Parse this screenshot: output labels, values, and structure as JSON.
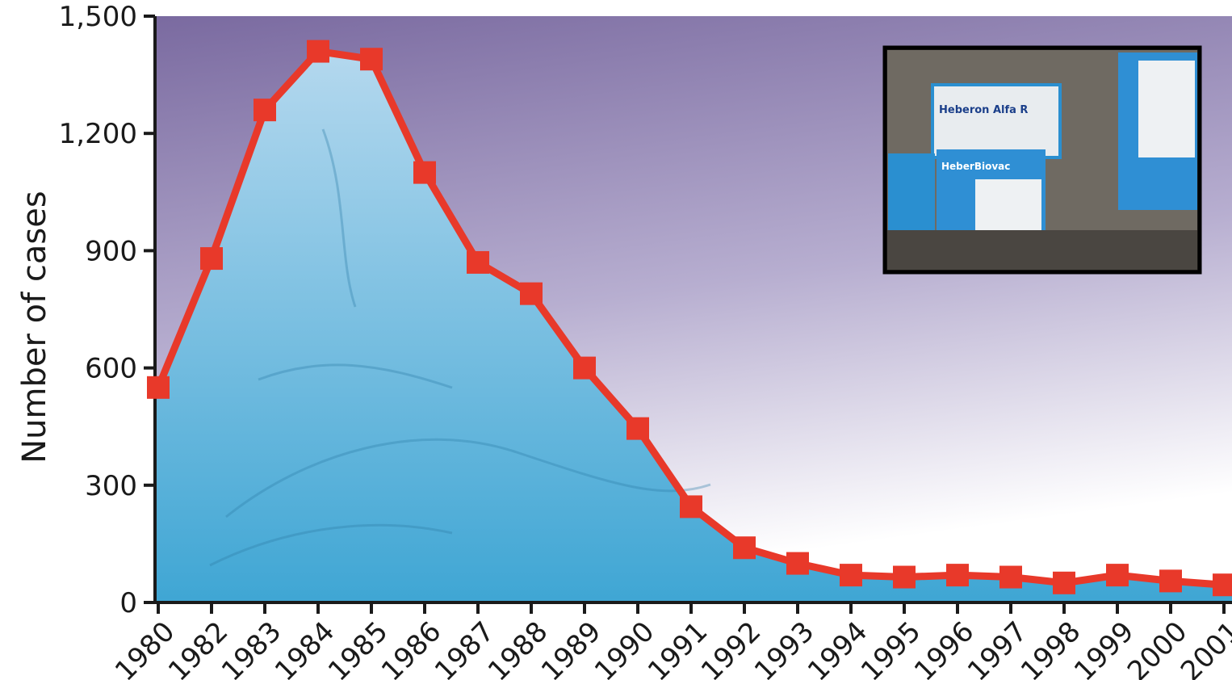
{
  "chart_data": {
    "type": "area",
    "title": "",
    "xlabel": "",
    "ylabel": "Number of cases",
    "ylim": [
      0,
      1500
    ],
    "yticks": [
      "0",
      "300",
      "600",
      "900",
      "1,200",
      "1,500"
    ],
    "categories": [
      "1980",
      "1982",
      "1983",
      "1984",
      "1985",
      "1986",
      "1987",
      "1988",
      "1989",
      "1990",
      "1991",
      "1992",
      "1993",
      "1994",
      "1995",
      "1996",
      "1997",
      "1998",
      "1999",
      "2000",
      "2001"
    ],
    "series": [
      {
        "values": [
          550,
          880,
          1260,
          1410,
          1390,
          1100,
          870,
          790,
          600,
          445,
          245,
          140,
          100,
          70,
          65,
          70,
          65,
          50,
          70,
          55,
          45
        ]
      }
    ],
    "grid": false,
    "legend": "none",
    "colors": {
      "line": "#e8392a",
      "marker": "#e8392a",
      "area_top": "#b4d8ee",
      "area_bottom": "#3fa6d4",
      "bg_top": "#7a6aa0",
      "bg_bottom": "#ffffff"
    }
  },
  "inset_photo": {
    "box_labels": [
      "Heberon Alfa R",
      "HeberBiovac"
    ]
  }
}
